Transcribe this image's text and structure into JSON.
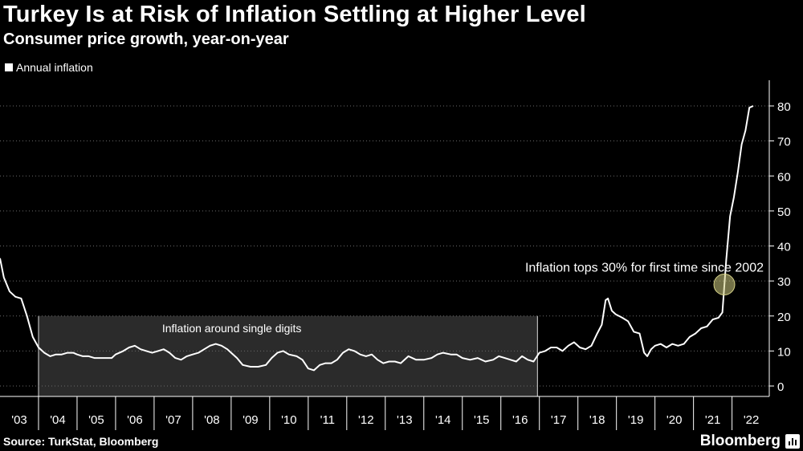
{
  "header": {
    "title": "Turkey Is at Risk of Inflation Settling at Higher Level",
    "subtitle": "Consumer price growth, year-on-year"
  },
  "footer": {
    "source": "Source: TurkStat, Bloomberg",
    "brand": "Bloomberg"
  },
  "chart_data": {
    "type": "line",
    "title": "Turkey Is at Risk of Inflation Settling at Higher Level",
    "subtitle": "Consumer price growth, year-on-year",
    "legend": {
      "entries": [
        "Annual inflation"
      ],
      "position": "top-left"
    },
    "y_axis": {
      "ticks": [
        0,
        10,
        20,
        30,
        40,
        50,
        60,
        70,
        80
      ],
      "tick_labels": [
        "0",
        "10",
        "20",
        "30",
        "40",
        "50",
        "60",
        "70",
        "80"
      ],
      "position": "right",
      "range": [
        -3,
        87
      ]
    },
    "x_axis": {
      "tick_labels": [
        "'03",
        "'04",
        "'05",
        "'06",
        "'07",
        "'08",
        "'09",
        "'10",
        "'11",
        "'12",
        "'13",
        "'14",
        "'15",
        "'16",
        "'17",
        "'18",
        "'19",
        "'20",
        "'21",
        "'22"
      ],
      "range": [
        2003.0,
        2022.55
      ]
    },
    "grid": "horizontal dotted",
    "series": [
      {
        "name": "Annual inflation",
        "color": "#ffffff",
        "points": [
          [
            2003.0,
            36.5
          ],
          [
            2003.1,
            31
          ],
          [
            2003.25,
            27
          ],
          [
            2003.4,
            25.5
          ],
          [
            2003.55,
            25
          ],
          [
            2003.7,
            20
          ],
          [
            2003.85,
            14
          ],
          [
            2004.0,
            11
          ],
          [
            2004.15,
            9.5
          ],
          [
            2004.3,
            8.5
          ],
          [
            2004.45,
            9
          ],
          [
            2004.6,
            9
          ],
          [
            2004.75,
            9.5
          ],
          [
            2004.9,
            9.5
          ],
          [
            2005.0,
            9
          ],
          [
            2005.15,
            8.5
          ],
          [
            2005.3,
            8.5
          ],
          [
            2005.45,
            8
          ],
          [
            2005.6,
            8
          ],
          [
            2005.75,
            8
          ],
          [
            2005.9,
            8
          ],
          [
            2006.0,
            9
          ],
          [
            2006.2,
            10
          ],
          [
            2006.35,
            11
          ],
          [
            2006.5,
            11.5
          ],
          [
            2006.65,
            10.5
          ],
          [
            2006.8,
            10
          ],
          [
            2006.95,
            9.5
          ],
          [
            2007.1,
            10
          ],
          [
            2007.25,
            10.5
          ],
          [
            2007.4,
            9.5
          ],
          [
            2007.55,
            8
          ],
          [
            2007.7,
            7.5
          ],
          [
            2007.85,
            8.5
          ],
          [
            2008.0,
            9
          ],
          [
            2008.15,
            9.5
          ],
          [
            2008.3,
            10.5
          ],
          [
            2008.45,
            11.5
          ],
          [
            2008.6,
            12
          ],
          [
            2008.75,
            11.5
          ],
          [
            2008.9,
            10.5
          ],
          [
            2009.0,
            9.5
          ],
          [
            2009.15,
            8
          ],
          [
            2009.3,
            6
          ],
          [
            2009.5,
            5.5
          ],
          [
            2009.7,
            5.5
          ],
          [
            2009.9,
            6
          ],
          [
            2010.05,
            8
          ],
          [
            2010.2,
            9.5
          ],
          [
            2010.35,
            10
          ],
          [
            2010.5,
            9
          ],
          [
            2010.7,
            8.5
          ],
          [
            2010.85,
            7.5
          ],
          [
            2011.0,
            5
          ],
          [
            2011.15,
            4.5
          ],
          [
            2011.3,
            6
          ],
          [
            2011.45,
            6.5
          ],
          [
            2011.6,
            6.5
          ],
          [
            2011.75,
            7.5
          ],
          [
            2011.9,
            9.5
          ],
          [
            2012.05,
            10.5
          ],
          [
            2012.2,
            10
          ],
          [
            2012.35,
            9
          ],
          [
            2012.5,
            8.5
          ],
          [
            2012.65,
            9
          ],
          [
            2012.8,
            7.5
          ],
          [
            2012.95,
            6.5
          ],
          [
            2013.1,
            7
          ],
          [
            2013.25,
            7
          ],
          [
            2013.4,
            6.5
          ],
          [
            2013.6,
            8.5
          ],
          [
            2013.8,
            7.5
          ],
          [
            2014.0,
            7.5
          ],
          [
            2014.2,
            8
          ],
          [
            2014.35,
            9
          ],
          [
            2014.5,
            9.5
          ],
          [
            2014.7,
            9
          ],
          [
            2014.85,
            9
          ],
          [
            2015.0,
            8
          ],
          [
            2015.2,
            7.5
          ],
          [
            2015.4,
            8
          ],
          [
            2015.6,
            7
          ],
          [
            2015.8,
            7.5
          ],
          [
            2015.95,
            8.5
          ],
          [
            2016.1,
            8
          ],
          [
            2016.25,
            7.5
          ],
          [
            2016.4,
            7
          ],
          [
            2016.55,
            8.5
          ],
          [
            2016.7,
            7.5
          ],
          [
            2016.85,
            7
          ],
          [
            2017.0,
            9.5
          ],
          [
            2017.15,
            10
          ],
          [
            2017.3,
            11
          ],
          [
            2017.45,
            11
          ],
          [
            2017.6,
            10
          ],
          [
            2017.75,
            11.5
          ],
          [
            2017.9,
            12.5
          ],
          [
            2018.05,
            11
          ],
          [
            2018.2,
            10.5
          ],
          [
            2018.35,
            11.5
          ],
          [
            2018.5,
            15
          ],
          [
            2018.62,
            17.5
          ],
          [
            2018.72,
            24.5
          ],
          [
            2018.78,
            25
          ],
          [
            2018.88,
            21.5
          ],
          [
            2018.98,
            20.5
          ],
          [
            2019.15,
            19.5
          ],
          [
            2019.3,
            18.5
          ],
          [
            2019.45,
            15.5
          ],
          [
            2019.6,
            15
          ],
          [
            2019.72,
            9.5
          ],
          [
            2019.8,
            8.5
          ],
          [
            2019.9,
            10.5
          ],
          [
            2020.0,
            11.5
          ],
          [
            2020.15,
            12
          ],
          [
            2020.3,
            11
          ],
          [
            2020.45,
            12
          ],
          [
            2020.6,
            11.5
          ],
          [
            2020.75,
            12
          ],
          [
            2020.9,
            14
          ],
          [
            2021.05,
            15
          ],
          [
            2021.2,
            16.5
          ],
          [
            2021.35,
            17
          ],
          [
            2021.5,
            19
          ],
          [
            2021.65,
            19.5
          ],
          [
            2021.75,
            21
          ],
          [
            2021.85,
            36
          ],
          [
            2021.95,
            48.5
          ],
          [
            2022.05,
            54
          ],
          [
            2022.15,
            61
          ],
          [
            2022.25,
            69
          ],
          [
            2022.35,
            73
          ],
          [
            2022.45,
            79.5
          ],
          [
            2022.55,
            80
          ]
        ]
      }
    ],
    "annotations": [
      {
        "text": "Inflation around single digits",
        "type": "shaded-band",
        "x_range": [
          2004.0,
          2016.95
        ],
        "y_range": [
          0,
          20
        ]
      },
      {
        "text": "Inflation tops 30% for first time since 2002",
        "type": "highlight-circle",
        "x": 2021.8,
        "y": 29
      }
    ]
  }
}
